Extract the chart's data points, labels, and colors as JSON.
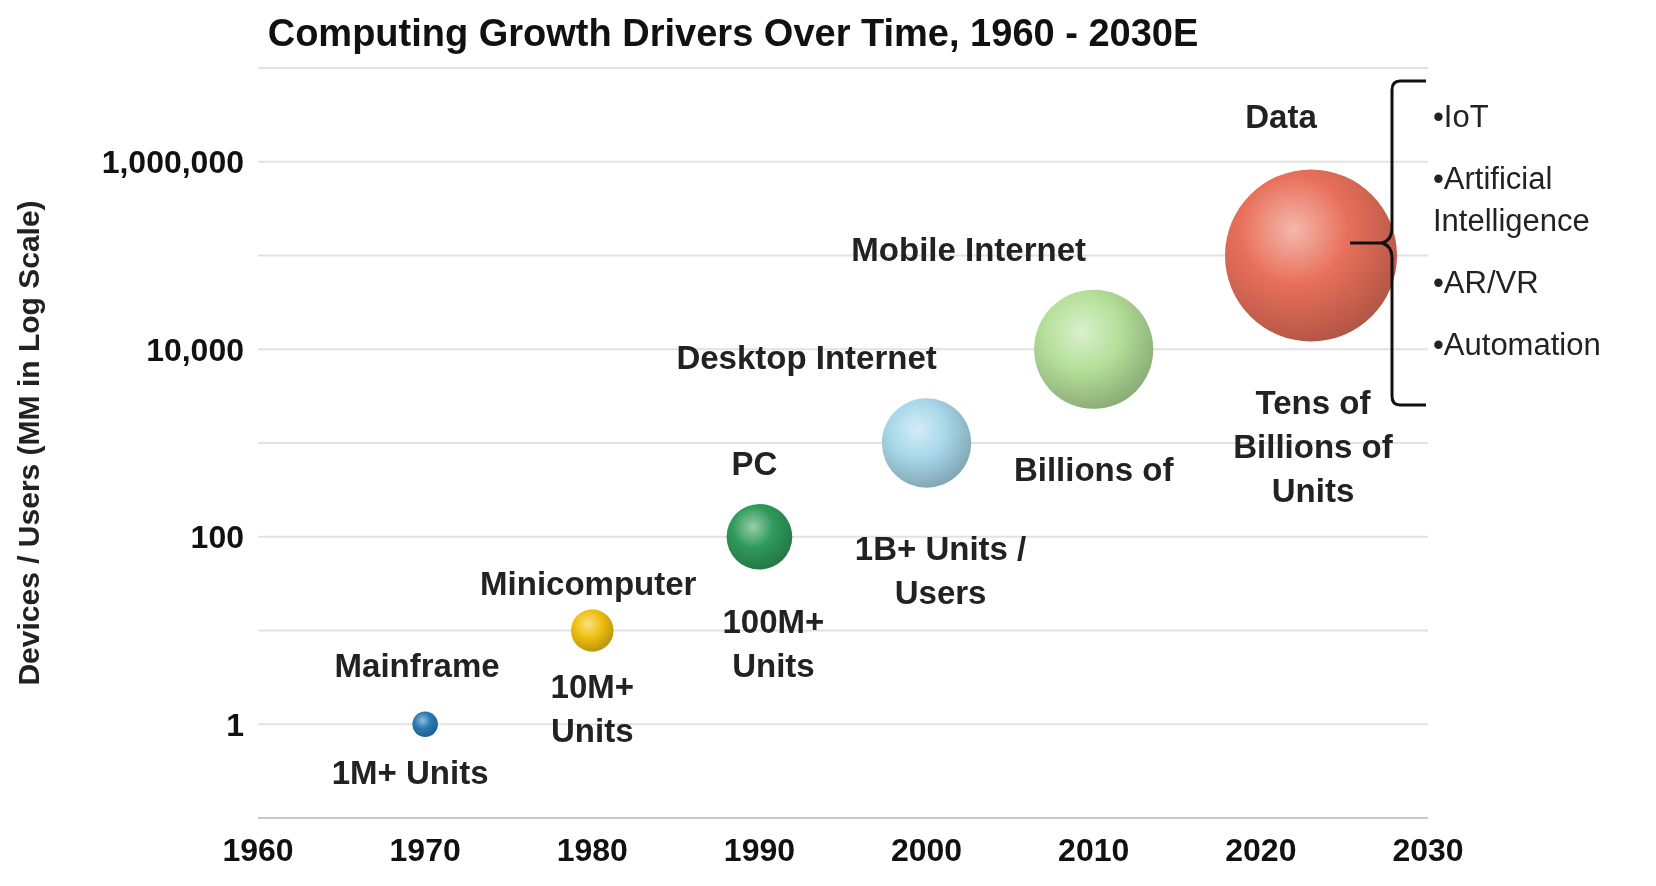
{
  "chart_data": {
    "type": "bubble",
    "title": "Computing Growth Drivers Over Time, 1960 - 2030E",
    "ylabel": "Devices / Users (MM in Log Scale)",
    "x": [
      1970,
      1980,
      1990,
      2000,
      2010,
      2023
    ],
    "values": [
      1,
      10,
      100,
      1000,
      10000,
      100000
    ],
    "sizes": [
      0.022,
      0.061,
      0.146,
      0.27,
      0.48,
      1
    ],
    "colors": [
      "#2a7bb5",
      "#f0c010",
      "#2f9a5a",
      "#a8d8ea",
      "#b5e09a",
      "#e8705a"
    ],
    "xlim": [
      1960,
      2030
    ],
    "xticks": [
      1960,
      1970,
      1980,
      1990,
      2000,
      2010,
      2020,
      2030
    ],
    "ylim": [
      0.1,
      10000000
    ],
    "yticks": [
      {
        "value": 0.1,
        "label": null
      },
      1,
      {
        "value": 10,
        "label": null
      },
      100,
      {
        "value": 1000,
        "label": null
      },
      {
        "value": 10000,
        "label": "10,000"
      },
      {
        "value": 100000,
        "label": null
      },
      {
        "value": 1000000,
        "label": "1,000,000"
      }
    ],
    "log": "y",
    "grid": "y",
    "annotations": [
      "Mainframe",
      "1M+ Units",
      "Minicomputer",
      "10M+\nUnits",
      "PC",
      "100M+\nUnits",
      "Desktop Internet",
      "1B+ Units /\nUsers",
      "Mobile Internet",
      "Billions of",
      "Data",
      "Tens of\nBillions of\nUnits",
      "•IoT",
      "•Artificial Intelligence",
      "•AR/VR",
      "•Automation"
    ]
  }
}
